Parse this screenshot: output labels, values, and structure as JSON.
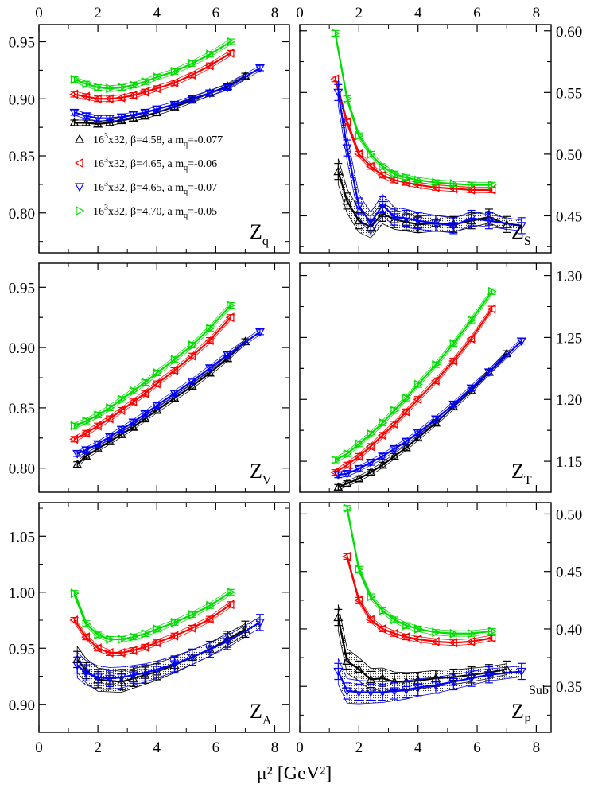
{
  "xlabel": "μ² [GeV²]",
  "xaxis": {
    "ticks": [
      "0",
      "2",
      "4",
      "6",
      "8"
    ],
    "range": [
      0,
      8.5
    ]
  },
  "colors": {
    "black": "#000000",
    "red": "#ff0000",
    "blue": "#0000ff",
    "green": "#00dd00"
  },
  "legend": [
    {
      "lattice": "16",
      "lattice_sup": "3",
      "rest": "x32, β=4.58, a m",
      "mq_sub": "q",
      "mq_val": "=-0.077",
      "marker": "triangle-up",
      "color": "#000000"
    },
    {
      "lattice": "16",
      "lattice_sup": "3",
      "rest": "x32, β=4.65, a m",
      "mq_sub": "q",
      "mq_val": "=-0.06",
      "marker": "triangle-left",
      "color": "#ff0000"
    },
    {
      "lattice": "16",
      "lattice_sup": "3",
      "rest": "x32, β=4.65, a m",
      "mq_sub": "q",
      "mq_val": "=-0.07",
      "marker": "triangle-down",
      "color": "#0000ff"
    },
    {
      "lattice": "16",
      "lattice_sup": "3",
      "rest": "x32, β=4.70, a m",
      "mq_sub": "q",
      "mq_val": "=-0.05",
      "marker": "triangle-right",
      "color": "#00dd00"
    }
  ],
  "chart_data": [
    {
      "type": "line",
      "panel": "Z_q",
      "label_main": "Z",
      "label_sub": "q",
      "label_sup": "",
      "yaxis_side": "left",
      "ylim": [
        0.765,
        0.965
      ],
      "yticks": [
        "0.80",
        "0.85",
        "0.90",
        "0.95"
      ],
      "series": [
        {
          "color": "#000000",
          "marker": "triangle-up",
          "band": false,
          "x": [
            1.2,
            1.6,
            2.0,
            2.4,
            2.8,
            3.2,
            3.6,
            4.0,
            4.6,
            5.2,
            5.8,
            6.4,
            7.0
          ],
          "y": [
            0.879,
            0.879,
            0.878,
            0.879,
            0.881,
            0.883,
            0.885,
            0.888,
            0.893,
            0.899,
            0.905,
            0.911,
            0.92
          ]
        },
        {
          "color": "#ff0000",
          "marker": "triangle-left",
          "band": false,
          "x": [
            1.2,
            1.6,
            2.0,
            2.4,
            2.8,
            3.2,
            3.6,
            4.0,
            4.6,
            5.2,
            5.8,
            6.5
          ],
          "y": [
            0.904,
            0.902,
            0.9,
            0.9,
            0.901,
            0.903,
            0.906,
            0.909,
            0.914,
            0.921,
            0.929,
            0.94
          ]
        },
        {
          "color": "#0000ff",
          "marker": "triangle-down",
          "band": false,
          "x": [
            1.2,
            1.6,
            2.0,
            2.4,
            2.8,
            3.2,
            3.6,
            4.0,
            4.6,
            5.2,
            5.8,
            6.4,
            7.5
          ],
          "y": [
            0.888,
            0.885,
            0.883,
            0.883,
            0.884,
            0.886,
            0.888,
            0.891,
            0.895,
            0.9,
            0.905,
            0.91,
            0.927
          ]
        },
        {
          "color": "#00dd00",
          "marker": "triangle-right",
          "band": false,
          "x": [
            1.2,
            1.6,
            2.0,
            2.4,
            2.8,
            3.2,
            3.6,
            4.0,
            4.6,
            5.2,
            5.8,
            6.5
          ],
          "y": [
            0.917,
            0.913,
            0.91,
            0.909,
            0.91,
            0.912,
            0.915,
            0.919,
            0.924,
            0.931,
            0.939,
            0.95
          ]
        }
      ]
    },
    {
      "type": "line",
      "panel": "Z_S",
      "label_main": "Z",
      "label_sub": "S",
      "label_sup": "",
      "yaxis_side": "right",
      "ylim": [
        0.42,
        0.605
      ],
      "yticks": [
        "0.45",
        "0.50",
        "0.55",
        "0.60"
      ],
      "series": [
        {
          "color": "#000000",
          "marker": "triangle-up",
          "band": true,
          "x": [
            1.3,
            1.6,
            2.0,
            2.4,
            2.8,
            3.2,
            3.6,
            4.0,
            4.6,
            5.2,
            5.8,
            6.4,
            7.0
          ],
          "y": [
            0.486,
            0.462,
            0.446,
            0.441,
            0.452,
            0.447,
            0.445,
            0.443,
            0.444,
            0.443,
            0.446,
            0.449,
            0.443
          ]
        },
        {
          "color": "#ff0000",
          "marker": "triangle-left",
          "band": false,
          "x": [
            1.2,
            1.6,
            2.0,
            2.4,
            2.8,
            3.2,
            3.6,
            4.0,
            4.6,
            5.2,
            5.8,
            6.5
          ],
          "y": [
            0.561,
            0.526,
            0.5,
            0.49,
            0.483,
            0.479,
            0.477,
            0.475,
            0.473,
            0.472,
            0.471,
            0.471
          ]
        },
        {
          "color": "#0000ff",
          "marker": "triangle-down",
          "band": true,
          "x": [
            1.3,
            1.6,
            2.0,
            2.4,
            2.8,
            3.2,
            3.6,
            4.0,
            4.6,
            5.2,
            5.8,
            6.4,
            7.5
          ],
          "y": [
            0.55,
            0.505,
            0.458,
            0.444,
            0.459,
            0.449,
            0.448,
            0.446,
            0.444,
            0.442,
            0.448,
            0.446,
            0.442
          ]
        },
        {
          "color": "#00dd00",
          "marker": "triangle-right",
          "band": false,
          "x": [
            1.2,
            1.6,
            2.0,
            2.4,
            2.8,
            3.2,
            3.6,
            4.0,
            4.6,
            5.2,
            5.8,
            6.5
          ],
          "y": [
            0.598,
            0.545,
            0.515,
            0.5,
            0.49,
            0.484,
            0.481,
            0.479,
            0.477,
            0.476,
            0.475,
            0.475
          ]
        }
      ]
    },
    {
      "type": "line",
      "panel": "Z_V",
      "label_main": "Z",
      "label_sub": "V",
      "label_sup": "",
      "yaxis_side": "left",
      "ylim": [
        0.78,
        0.97
      ],
      "yticks": [
        "0.80",
        "0.85",
        "0.90",
        "0.95"
      ],
      "series": [
        {
          "color": "#000000",
          "marker": "triangle-up",
          "band": false,
          "x": [
            1.3,
            1.6,
            2.0,
            2.4,
            2.8,
            3.2,
            3.6,
            4.0,
            4.6,
            5.2,
            5.8,
            6.4,
            7.0
          ],
          "y": [
            0.803,
            0.81,
            0.816,
            0.822,
            0.828,
            0.834,
            0.841,
            0.848,
            0.858,
            0.868,
            0.879,
            0.891,
            0.905
          ]
        },
        {
          "color": "#ff0000",
          "marker": "triangle-left",
          "band": false,
          "x": [
            1.2,
            1.6,
            2.0,
            2.4,
            2.8,
            3.2,
            3.6,
            4.0,
            4.6,
            5.2,
            5.8,
            6.5
          ],
          "y": [
            0.824,
            0.829,
            0.835,
            0.841,
            0.848,
            0.855,
            0.862,
            0.87,
            0.881,
            0.893,
            0.906,
            0.925
          ]
        },
        {
          "color": "#0000ff",
          "marker": "triangle-down",
          "band": false,
          "x": [
            1.3,
            1.6,
            2.0,
            2.4,
            2.8,
            3.2,
            3.6,
            4.0,
            4.6,
            5.2,
            5.8,
            6.4,
            7.5
          ],
          "y": [
            0.812,
            0.815,
            0.82,
            0.826,
            0.832,
            0.838,
            0.845,
            0.852,
            0.862,
            0.872,
            0.883,
            0.894,
            0.913
          ]
        },
        {
          "color": "#00dd00",
          "marker": "triangle-right",
          "band": false,
          "x": [
            1.2,
            1.6,
            2.0,
            2.4,
            2.8,
            3.2,
            3.6,
            4.0,
            4.6,
            5.2,
            5.8,
            6.5
          ],
          "y": [
            0.835,
            0.839,
            0.844,
            0.85,
            0.857,
            0.864,
            0.871,
            0.879,
            0.89,
            0.902,
            0.916,
            0.935
          ]
        }
      ]
    },
    {
      "type": "line",
      "panel": "Z_T",
      "label_main": "Z",
      "label_sub": "T",
      "label_sup": "",
      "yaxis_side": "right",
      "ylim": [
        1.125,
        1.31
      ],
      "yticks": [
        "1.15",
        "1.20",
        "1.25",
        "1.30"
      ],
      "series": [
        {
          "color": "#000000",
          "marker": "triangle-up",
          "band": false,
          "x": [
            1.3,
            1.6,
            2.0,
            2.4,
            2.8,
            3.2,
            3.6,
            4.0,
            4.6,
            5.2,
            5.8,
            6.4,
            7.0
          ],
          "y": [
            1.129,
            1.132,
            1.136,
            1.141,
            1.147,
            1.154,
            1.161,
            1.169,
            1.181,
            1.194,
            1.207,
            1.222,
            1.237
          ]
        },
        {
          "color": "#ff0000",
          "marker": "triangle-left",
          "band": false,
          "x": [
            1.2,
            1.6,
            2.0,
            2.4,
            2.8,
            3.2,
            3.6,
            4.0,
            4.6,
            5.2,
            5.8,
            6.5
          ],
          "y": [
            1.141,
            1.147,
            1.154,
            1.162,
            1.171,
            1.18,
            1.19,
            1.2,
            1.215,
            1.231,
            1.249,
            1.273
          ]
        },
        {
          "color": "#0000ff",
          "marker": "triangle-down",
          "band": false,
          "x": [
            1.3,
            1.6,
            2.0,
            2.4,
            2.8,
            3.2,
            3.6,
            4.0,
            4.6,
            5.2,
            5.8,
            6.4,
            7.5
          ],
          "y": [
            1.139,
            1.14,
            1.144,
            1.149,
            1.154,
            1.16,
            1.166,
            1.173,
            1.184,
            1.196,
            1.209,
            1.222,
            1.247
          ]
        },
        {
          "color": "#00dd00",
          "marker": "triangle-right",
          "band": false,
          "x": [
            1.2,
            1.6,
            2.0,
            2.4,
            2.8,
            3.2,
            3.6,
            4.0,
            4.6,
            5.2,
            5.8,
            6.5
          ],
          "y": [
            1.151,
            1.156,
            1.164,
            1.172,
            1.181,
            1.191,
            1.201,
            1.212,
            1.228,
            1.245,
            1.264,
            1.287
          ]
        }
      ]
    },
    {
      "type": "line",
      "panel": "Z_A",
      "label_main": "Z",
      "label_sub": "A",
      "label_sup": "",
      "yaxis_side": "left",
      "ylim": [
        0.875,
        1.08
      ],
      "yticks": [
        "0.90",
        "0.95",
        "1.00",
        "1.05"
      ],
      "series": [
        {
          "color": "#000000",
          "marker": "triangle-up",
          "band": true,
          "x": [
            1.3,
            1.6,
            2.0,
            2.4,
            2.8,
            3.2,
            3.6,
            4.0,
            4.6,
            5.2,
            5.8,
            6.4,
            7.0
          ],
          "y": [
            0.94,
            0.93,
            0.922,
            0.921,
            0.92,
            0.923,
            0.926,
            0.929,
            0.935,
            0.942,
            0.949,
            0.958,
            0.967
          ]
        },
        {
          "color": "#ff0000",
          "marker": "triangle-left",
          "band": false,
          "x": [
            1.2,
            1.6,
            2.0,
            2.4,
            2.8,
            3.2,
            3.6,
            4.0,
            4.6,
            5.2,
            5.8,
            6.5
          ],
          "y": [
            0.975,
            0.96,
            0.95,
            0.946,
            0.946,
            0.948,
            0.951,
            0.955,
            0.961,
            0.968,
            0.976,
            0.989
          ]
        },
        {
          "color": "#0000ff",
          "marker": "triangle-down",
          "band": true,
          "x": [
            1.3,
            1.6,
            2.0,
            2.4,
            2.8,
            3.2,
            3.6,
            4.0,
            4.6,
            5.2,
            5.8,
            6.4,
            7.5
          ],
          "y": [
            0.935,
            0.928,
            0.924,
            0.923,
            0.924,
            0.926,
            0.928,
            0.931,
            0.936,
            0.942,
            0.949,
            0.956,
            0.973
          ]
        },
        {
          "color": "#00dd00",
          "marker": "triangle-right",
          "band": false,
          "x": [
            1.2,
            1.6,
            2.0,
            2.4,
            2.8,
            3.2,
            3.6,
            4.0,
            4.6,
            5.2,
            5.8,
            6.5
          ],
          "y": [
            0.999,
            0.972,
            0.962,
            0.958,
            0.958,
            0.96,
            0.963,
            0.967,
            0.973,
            0.98,
            0.988,
            1.0
          ]
        }
      ]
    },
    {
      "type": "line",
      "panel": "Z_P^Sub",
      "label_main": "Z",
      "label_sub": "P",
      "label_sup": "Sub",
      "yaxis_side": "right",
      "ylim": [
        0.31,
        0.51
      ],
      "yticks": [
        "0.35",
        "0.40",
        "0.45",
        "0.50"
      ],
      "series": [
        {
          "color": "#000000",
          "marker": "triangle-up",
          "band": true,
          "x": [
            1.3,
            1.6,
            2.0,
            2.4,
            2.8,
            3.2,
            3.6,
            4.0,
            4.6,
            5.2,
            5.8,
            6.4,
            7.0
          ],
          "y": [
            0.41,
            0.372,
            0.365,
            0.356,
            0.357,
            0.354,
            0.354,
            0.355,
            0.357,
            0.358,
            0.36,
            0.362,
            0.365
          ]
        },
        {
          "color": "#ff0000",
          "marker": "triangle-left",
          "band": false,
          "x": [
            1.6,
            2.0,
            2.4,
            2.8,
            3.2,
            3.6,
            4.0,
            4.6,
            5.2,
            5.8,
            6.5
          ],
          "y": [
            0.463,
            0.425,
            0.408,
            0.4,
            0.396,
            0.393,
            0.391,
            0.389,
            0.388,
            0.389,
            0.392
          ]
        },
        {
          "color": "#0000ff",
          "marker": "triangle-down",
          "band": true,
          "x": [
            1.3,
            1.6,
            2.0,
            2.4,
            2.8,
            3.2,
            3.6,
            4.0,
            4.6,
            5.2,
            5.8,
            6.4,
            7.5
          ],
          "y": [
            0.363,
            0.346,
            0.345,
            0.345,
            0.345,
            0.346,
            0.347,
            0.349,
            0.351,
            0.354,
            0.357,
            0.36,
            0.363
          ]
        },
        {
          "color": "#00dd00",
          "marker": "triangle-right",
          "band": false,
          "x": [
            1.6,
            2.0,
            2.4,
            2.8,
            3.2,
            3.6,
            4.0,
            4.6,
            5.2,
            5.8,
            6.5
          ],
          "y": [
            0.505,
            0.452,
            0.428,
            0.416,
            0.408,
            0.403,
            0.4,
            0.397,
            0.396,
            0.396,
            0.398
          ]
        }
      ]
    }
  ]
}
